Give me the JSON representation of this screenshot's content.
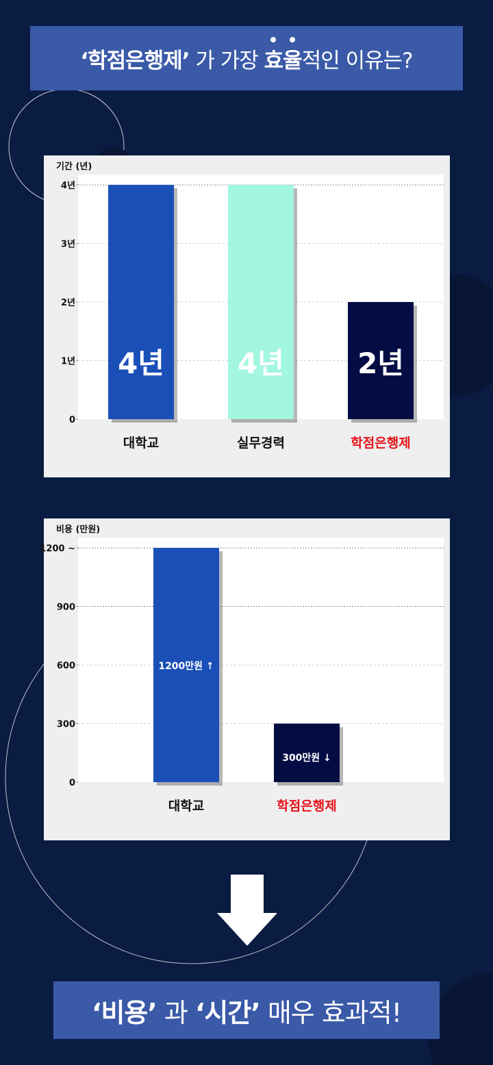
{
  "header": {
    "title_q1": "‘학점은행제’",
    "title_mid": " 가 가장 ",
    "title_em1": "효",
    "title_em2": "율",
    "title_end": "적인 이유는?"
  },
  "colors": {
    "background": "#0a1c42",
    "banner": "#3a5aa8",
    "bar_blue": "#1a4fb8",
    "bar_mint": "#a3f7e0",
    "bar_navy": "#040c44",
    "highlight_red": "#e8131b"
  },
  "chart_data": [
    {
      "type": "bar",
      "ylabel": "기간 (년)",
      "categories": [
        "대학교",
        "실무경력",
        "학점은행제"
      ],
      "values": [
        4,
        4,
        2
      ],
      "data_labels": [
        "4년",
        "4년",
        "2년"
      ],
      "bar_colors": [
        "#1a4fb8",
        "#a3f7e0",
        "#040c44"
      ],
      "category_colors": [
        "#111111",
        "#111111",
        "#e8131b"
      ],
      "yticks": [
        0,
        1,
        2,
        3,
        4
      ],
      "ytick_labels": [
        "0",
        "1년",
        "2년",
        "3년",
        "4년"
      ],
      "ylim": [
        0,
        4
      ],
      "grid": true,
      "legend": "none"
    },
    {
      "type": "bar",
      "ylabel": "비용 (만원)",
      "categories": [
        "대학교",
        "학점은행제"
      ],
      "values": [
        1200,
        300
      ],
      "data_labels": [
        "1200만원 ↑",
        "300만원 ↓"
      ],
      "bar_colors": [
        "#1a4fb8",
        "#040c44"
      ],
      "category_colors": [
        "#111111",
        "#e8131b"
      ],
      "yticks": [
        0,
        300,
        600,
        900,
        1200
      ],
      "ytick_labels": [
        "0",
        "300",
        "600",
        "900",
        "1200 ~"
      ],
      "ylim": [
        0,
        1200
      ],
      "grid": true,
      "legend": "none"
    }
  ],
  "footer": {
    "part1": "‘비용’",
    "part2": " 과 ",
    "part3": "‘시간’",
    "part4": " 매우 효과적!"
  }
}
